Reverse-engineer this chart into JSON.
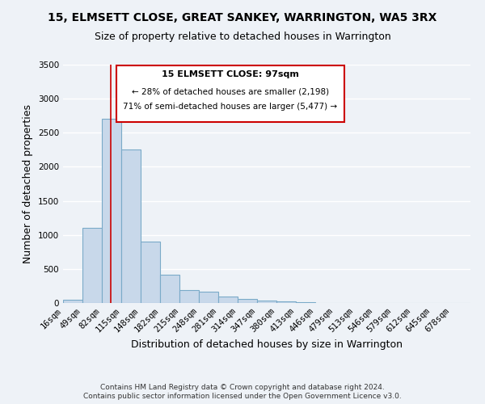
{
  "title": "15, ELMSETT CLOSE, GREAT SANKEY, WARRINGTON, WA5 3RX",
  "subtitle": "Size of property relative to detached houses in Warrington",
  "xlabel": "Distribution of detached houses by size in Warrington",
  "ylabel": "Number of detached properties",
  "bin_labels": [
    "16sqm",
    "49sqm",
    "82sqm",
    "115sqm",
    "148sqm",
    "182sqm",
    "215sqm",
    "248sqm",
    "281sqm",
    "314sqm",
    "347sqm",
    "380sqm",
    "413sqm",
    "446sqm",
    "479sqm",
    "513sqm",
    "546sqm",
    "579sqm",
    "612sqm",
    "645sqm",
    "678sqm"
  ],
  "bin_edges": [
    16,
    49,
    82,
    115,
    148,
    182,
    215,
    248,
    281,
    314,
    347,
    380,
    413,
    446,
    479,
    513,
    546,
    579,
    612,
    645,
    678,
    711
  ],
  "bar_values": [
    50,
    1100,
    2700,
    2250,
    900,
    420,
    185,
    170,
    95,
    65,
    30,
    20,
    15,
    0,
    0,
    0,
    0,
    0,
    0,
    0,
    0
  ],
  "bar_color": "#c8d8ea",
  "bar_edge_color": "#7aaac8",
  "vline_x": 97,
  "vline_color": "#cc0000",
  "ylim": [
    0,
    3500
  ],
  "yticks": [
    0,
    500,
    1000,
    1500,
    2000,
    2500,
    3000,
    3500
  ],
  "annotation_title": "15 ELMSETT CLOSE: 97sqm",
  "annotation_line1": "← 28% of detached houses are smaller (2,198)",
  "annotation_line2": "71% of semi-detached houses are larger (5,477) →",
  "annotation_box_color": "#ffffff",
  "annotation_box_edge": "#cc0000",
  "footer1": "Contains HM Land Registry data © Crown copyright and database right 2024.",
  "footer2": "Contains public sector information licensed under the Open Government Licence v3.0.",
  "background_color": "#eef2f7",
  "plot_background": "#eef2f7",
  "grid_color": "#ffffff",
  "title_fontsize": 10,
  "subtitle_fontsize": 9,
  "axis_label_fontsize": 9,
  "tick_fontsize": 7.5,
  "footer_fontsize": 6.5
}
